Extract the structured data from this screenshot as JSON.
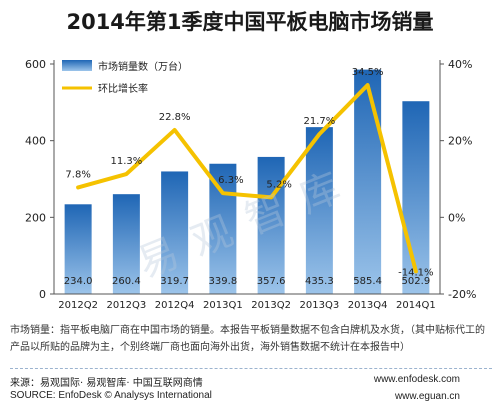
{
  "title": "2014年第1季度中国平板电脑市场销量",
  "watermark": "易观智库",
  "note": "市场销量：指平板电脑厂商在中国市场的销量。本报告平板销量数据不包含白牌机及水货，（其中贴标代工的产品以所贴的品牌为主，个别终端厂商也面向海外出货，海外销售数据不统计在本报告中）",
  "source_cn": "来源：易观国际· 易观智库· 中国互联网商情",
  "source_en": "SOURCE: EnfoDesk © Analysys International",
  "url1": "www.enfodesk.com",
  "url2": "www.eguan.cn",
  "colors": {
    "bar_top": "#1f66b5",
    "bar_bottom": "#9cc4ea",
    "line": "#f5c200",
    "axis": "#555555"
  },
  "chart_data": {
    "type": "bar",
    "categories": [
      "2012Q2",
      "2012Q3",
      "2012Q4",
      "2013Q1",
      "2013Q2",
      "2013Q3",
      "2013Q4",
      "2014Q1"
    ],
    "series": [
      {
        "name": "市场销量数（万台）",
        "type": "bar",
        "axis": "left",
        "values": [
          234.0,
          260.4,
          319.7,
          339.8,
          357.6,
          435.3,
          585.4,
          502.9
        ],
        "labels": [
          "234.0",
          "260.4",
          "319.7",
          "339.8",
          "357.6",
          "435.3",
          "585.4",
          "502.9"
        ]
      },
      {
        "name": "环比增长率",
        "type": "line",
        "axis": "right",
        "values": [
          7.8,
          11.3,
          22.8,
          6.3,
          5.2,
          21.7,
          34.5,
          -14.1
        ],
        "labels": [
          "7.8%",
          "11.3%",
          "22.8%",
          "6.3%",
          "5.2%",
          "21.7%",
          "34.5%",
          "-14.1%"
        ]
      }
    ],
    "ylim_left": [
      0,
      600
    ],
    "yticks_left": [
      "0",
      "200",
      "400",
      "600"
    ],
    "ylim_right": [
      -20,
      40
    ],
    "yticks_right": [
      "-20%",
      "0%",
      "20%",
      "40%"
    ],
    "legend_position": "top-left",
    "grid": false
  }
}
